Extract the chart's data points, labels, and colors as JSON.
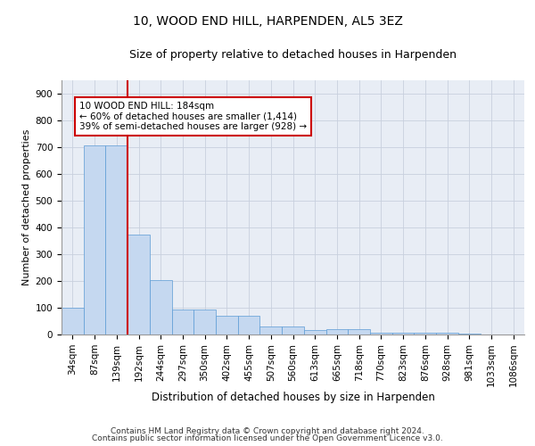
{
  "title": "10, WOOD END HILL, HARPENDEN, AL5 3EZ",
  "subtitle": "Size of property relative to detached houses in Harpenden",
  "xlabel": "Distribution of detached houses by size in Harpenden",
  "ylabel": "Number of detached properties",
  "categories": [
    "34sqm",
    "87sqm",
    "139sqm",
    "192sqm",
    "244sqm",
    "297sqm",
    "350sqm",
    "402sqm",
    "455sqm",
    "507sqm",
    "560sqm",
    "613sqm",
    "665sqm",
    "718sqm",
    "770sqm",
    "823sqm",
    "876sqm",
    "928sqm",
    "981sqm",
    "1033sqm",
    "1086sqm"
  ],
  "values": [
    100,
    706,
    706,
    375,
    205,
    95,
    93,
    70,
    70,
    30,
    30,
    18,
    20,
    20,
    8,
    8,
    8,
    8,
    5,
    0,
    0
  ],
  "bar_color": "#c5d8f0",
  "bar_edge_color": "#5b9bd5",
  "grid_color": "#c8d0de",
  "background_color": "#e8edf5",
  "vline_x_index": 2.5,
  "vline_color": "#cc0000",
  "annotation_text": "10 WOOD END HILL: 184sqm\n← 60% of detached houses are smaller (1,414)\n39% of semi-detached houses are larger (928) →",
  "annotation_box_color": "#ffffff",
  "annotation_box_edge": "#cc0000",
  "footnote_line1": "Contains HM Land Registry data © Crown copyright and database right 2024.",
  "footnote_line2": "Contains public sector information licensed under the Open Government Licence v3.0.",
  "ylim": [
    0,
    950
  ],
  "yticks": [
    0,
    100,
    200,
    300,
    400,
    500,
    600,
    700,
    800,
    900
  ],
  "title_fontsize": 10,
  "subtitle_fontsize": 9,
  "xlabel_fontsize": 8.5,
  "ylabel_fontsize": 8,
  "tick_fontsize": 7.5,
  "annotation_fontsize": 7.5,
  "footnote_fontsize": 6.5
}
